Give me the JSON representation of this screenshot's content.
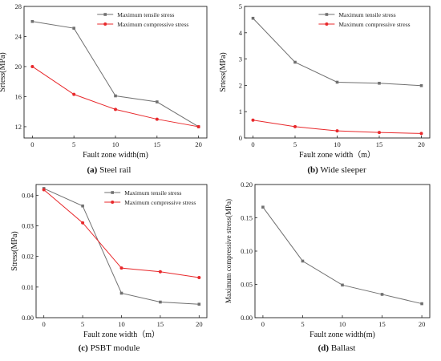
{
  "colors": {
    "tensile": "#707070",
    "compressive": "#e8282b",
    "axis": "#222222"
  },
  "chart_data": [
    {
      "type": "line",
      "caption_letter": "(a)",
      "caption_text": " Steel rail",
      "xlabel": "Fault zone width(m)",
      "ylabel": "Srtess(MPa)",
      "x": [
        0,
        5,
        10,
        15,
        20
      ],
      "xticks": [
        "0",
        "5",
        "10",
        "15",
        "20"
      ],
      "yticks": [
        "12",
        "16",
        "20",
        "24",
        "28"
      ],
      "ylim": [
        10.5,
        28
      ],
      "xlim": [
        -1,
        21
      ],
      "legend": "top-right",
      "series": [
        {
          "name": "Maximum tensile stress",
          "color_key": "tensile",
          "values": [
            26.0,
            25.1,
            16.1,
            15.3,
            12.0
          ]
        },
        {
          "name": "Maximum compressive stress",
          "color_key": "compressive",
          "values": [
            20.0,
            16.3,
            14.3,
            13.0,
            12.0
          ]
        }
      ]
    },
    {
      "type": "line",
      "caption_letter": "(b)",
      "caption_text": " Wide sleeper",
      "xlabel": "Fault zone width（m）",
      "ylabel": "Srtess(MPa)",
      "x": [
        0,
        5,
        10,
        15,
        20
      ],
      "xticks": [
        "0",
        "5",
        "10",
        "15",
        "20"
      ],
      "yticks": [
        "0",
        "1",
        "2",
        "3",
        "4",
        "5"
      ],
      "ylim": [
        0,
        5
      ],
      "xlim": [
        -1,
        21
      ],
      "legend": "top-right",
      "series": [
        {
          "name": "Maximum tensile stress",
          "color_key": "tensile",
          "values": [
            4.55,
            2.88,
            2.12,
            2.08,
            1.99
          ]
        },
        {
          "name": "Maximum compressive stress",
          "color_key": "compressive",
          "values": [
            0.68,
            0.43,
            0.27,
            0.21,
            0.17
          ]
        }
      ]
    },
    {
      "type": "line",
      "caption_letter": "(c)",
      "caption_text": " PSBT module",
      "xlabel": "Fault zone width（m）",
      "ylabel": "Stress(MPa)",
      "x": [
        0,
        5,
        10,
        15,
        20
      ],
      "xticks": [
        "0",
        "5",
        "10",
        "15",
        "20"
      ],
      "yticks": [
        "0.00",
        "0.01",
        "0.02",
        "0.03",
        "0.04"
      ],
      "ylim": [
        0,
        0.0435
      ],
      "xlim": [
        -1,
        21
      ],
      "legend": "top-right",
      "series": [
        {
          "name": "Maximum tensile stress",
          "color_key": "tensile",
          "values": [
            0.0422,
            0.0365,
            0.008,
            0.0051,
            0.0044
          ]
        },
        {
          "name": "Maximum compressive stress",
          "color_key": "compressive",
          "values": [
            0.0418,
            0.031,
            0.0162,
            0.015,
            0.0131
          ]
        }
      ]
    },
    {
      "type": "line",
      "caption_letter": "(d)",
      "caption_text": " Ballast",
      "xlabel": "Fault zone width(m)",
      "ylabel": "Maximum compressive stress(MPa)",
      "x": [
        0,
        5,
        10,
        15,
        20
      ],
      "xticks": [
        "0",
        "5",
        "10",
        "15",
        "20"
      ],
      "yticks": [
        "0.00",
        "0.05",
        "0.10",
        "0.15",
        "0.20"
      ],
      "ylim": [
        0,
        0.2
      ],
      "xlim": [
        -1,
        21
      ],
      "legend": "none",
      "series": [
        {
          "name": "",
          "color_key": "tensile",
          "values": [
            0.166,
            0.085,
            0.049,
            0.035,
            0.021
          ]
        }
      ]
    }
  ]
}
